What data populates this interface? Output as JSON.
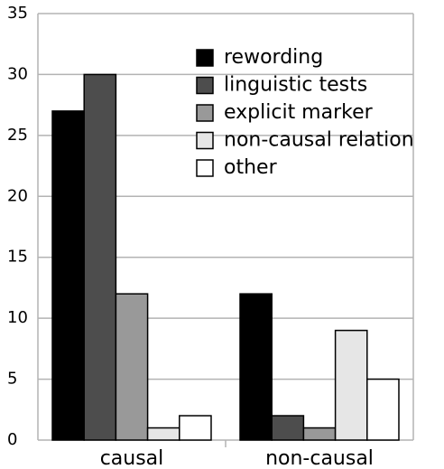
{
  "chart_data": {
    "type": "bar",
    "categories": [
      "causal",
      "non-causal"
    ],
    "series": [
      {
        "name": "rewording",
        "color": "#000000",
        "values": [
          27,
          12
        ]
      },
      {
        "name": "linguistic tests",
        "color": "#4d4d4d",
        "values": [
          30,
          2
        ]
      },
      {
        "name": "explicit marker",
        "color": "#999999",
        "values": [
          12,
          1
        ]
      },
      {
        "name": "non-causal relation",
        "color": "#e6e6e6",
        "values": [
          1,
          9
        ]
      },
      {
        "name": "other",
        "color": "#ffffff",
        "values": [
          2,
          5
        ]
      }
    ],
    "ylim": [
      0,
      35
    ],
    "yticks": [
      0,
      5,
      10,
      15,
      20,
      25,
      30,
      35
    ],
    "grid": true,
    "legend": "top-right"
  }
}
